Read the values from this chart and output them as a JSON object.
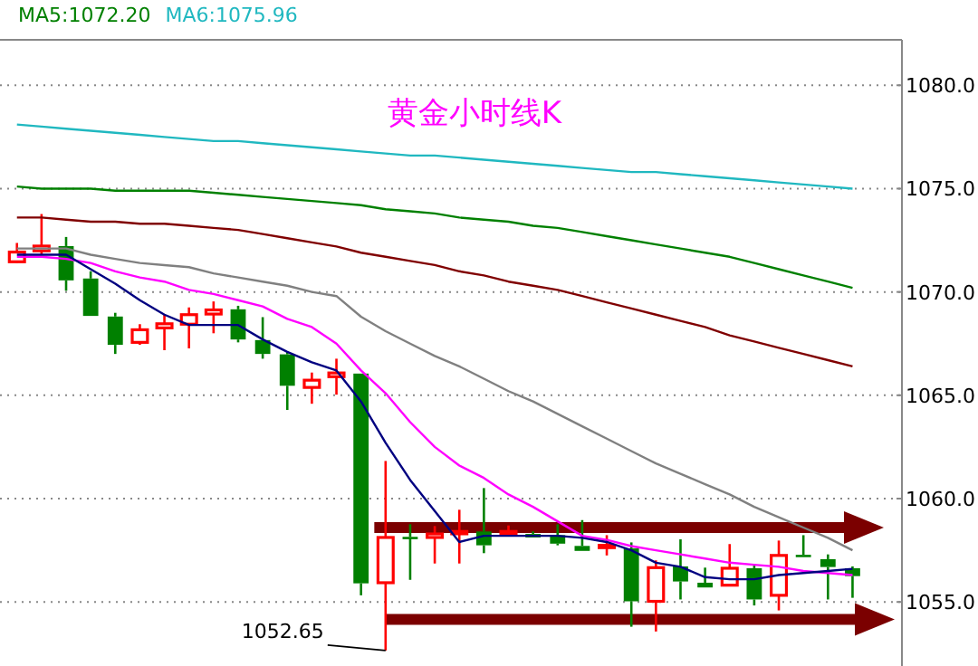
{
  "chart_data": {
    "type": "candlestick",
    "title": "黄金小时线K",
    "categories": [
      null,
      null,
      null,
      null,
      null,
      null,
      null,
      null,
      null,
      null,
      null,
      null,
      null,
      null,
      null,
      null,
      null,
      null,
      null,
      null,
      null,
      null,
      null,
      null,
      null,
      null,
      null,
      null,
      null,
      null,
      null,
      null,
      null,
      null,
      null
    ],
    "ohlc": [
      [
        1071.46,
        1072.37,
        1071.4,
        1071.93
      ],
      [
        1071.99,
        1073.77,
        1071.81,
        1072.22
      ],
      [
        1072.22,
        1072.66,
        1070.06,
        1070.56
      ],
      [
        1070.65,
        1071.0,
        1068.84,
        1068.84
      ],
      [
        1068.81,
        1068.99,
        1067.0,
        1067.44
      ],
      [
        1067.56,
        1068.44,
        1067.44,
        1068.17
      ],
      [
        1068.26,
        1068.9,
        1067.18,
        1068.46
      ],
      [
        1068.44,
        1069.25,
        1067.27,
        1068.9
      ],
      [
        1068.93,
        1069.54,
        1068.0,
        1069.13
      ],
      [
        1069.16,
        1069.33,
        1067.56,
        1067.7
      ],
      [
        1067.67,
        1068.78,
        1066.77,
        1067.0
      ],
      [
        1066.98,
        1067.12,
        1064.29,
        1065.46
      ],
      [
        1065.38,
        1066.1,
        1064.59,
        1065.73
      ],
      [
        1065.9,
        1066.77,
        1065.03,
        1066.08
      ],
      [
        1066.05,
        1066.05,
        1055.32,
        1055.9
      ],
      [
        1055.93,
        1061.82,
        1052.65,
        1058.12
      ],
      [
        1058.15,
        1058.76,
        1056.07,
        1058.1
      ],
      [
        1058.12,
        1058.67,
        1056.86,
        1058.29
      ],
      [
        1058.38,
        1059.46,
        1056.86,
        1058.41
      ],
      [
        1058.41,
        1060.51,
        1057.36,
        1057.74
      ],
      [
        1058.29,
        1058.7,
        1058.23,
        1058.41
      ],
      [
        1058.29,
        1058.41,
        1058.12,
        1058.12
      ],
      [
        1058.23,
        1058.76,
        1057.74,
        1057.82
      ],
      [
        1057.71,
        1058.96,
        1057.47,
        1057.47
      ],
      [
        1057.65,
        1058.23,
        1057.25,
        1057.74
      ],
      [
        1057.59,
        1057.88,
        1053.8,
        1055.03
      ],
      [
        1055.03,
        1057.01,
        1053.57,
        1056.66
      ],
      [
        1056.72,
        1058.03,
        1055.12,
        1055.99
      ],
      [
        1055.93,
        1056.66,
        1055.7,
        1055.7
      ],
      [
        1055.81,
        1057.8,
        1055.78,
        1056.63
      ],
      [
        1056.63,
        1056.78,
        1054.83,
        1055.12
      ],
      [
        1055.32,
        1057.97,
        1054.59,
        1057.25
      ],
      [
        1057.28,
        1058.23,
        1057.22,
        1057.22
      ],
      [
        1057.07,
        1057.3,
        1055.12,
        1056.69
      ],
      [
        1056.63,
        1056.72,
        1055.2,
        1056.25
      ]
    ],
    "series": [
      {
        "type": "line",
        "name": "MA6:1075.96",
        "color": "#20b8c0",
        "values": [
          1078.1,
          1078.0,
          1077.9,
          1077.8,
          1077.7,
          1077.6,
          1077.5,
          1077.4,
          1077.3,
          1077.3,
          1077.2,
          1077.1,
          1077.0,
          1076.9,
          1076.8,
          1076.7,
          1076.6,
          1076.6,
          1076.5,
          1076.4,
          1076.3,
          1076.2,
          1076.1,
          1076.0,
          1075.9,
          1075.8,
          1075.8,
          1075.7,
          1075.6,
          1075.5,
          1075.4,
          1075.3,
          1075.2,
          1075.1,
          1075.0
        ]
      },
      {
        "type": "line",
        "name": "MA5:1072.20",
        "color": "#008000",
        "values": [
          1075.1,
          1075.0,
          1075.0,
          1075.0,
          1074.9,
          1074.9,
          1074.9,
          1074.9,
          1074.8,
          1074.7,
          1074.6,
          1074.5,
          1074.4,
          1074.3,
          1074.2,
          1074.0,
          1073.9,
          1073.8,
          1073.6,
          1073.5,
          1073.4,
          1073.2,
          1073.1,
          1072.9,
          1072.7,
          1072.5,
          1072.3,
          1072.1,
          1071.9,
          1071.7,
          1071.4,
          1071.1,
          1070.8,
          1070.5,
          1070.2
        ]
      },
      {
        "type": "line",
        "color": "#800000",
        "values": [
          1073.6,
          1073.6,
          1073.5,
          1073.4,
          1073.4,
          1073.3,
          1073.3,
          1073.2,
          1073.1,
          1073.0,
          1072.8,
          1072.6,
          1072.4,
          1072.2,
          1071.9,
          1071.7,
          1071.5,
          1071.3,
          1071.0,
          1070.8,
          1070.5,
          1070.3,
          1070.1,
          1069.8,
          1069.5,
          1069.2,
          1068.9,
          1068.6,
          1068.3,
          1067.9,
          1067.6,
          1067.3,
          1067.0,
          1066.7,
          1066.4
        ]
      },
      {
        "type": "line",
        "color": "#808080",
        "values": [
          1072.1,
          1072.1,
          1072.1,
          1071.8,
          1071.6,
          1071.4,
          1071.3,
          1071.2,
          1070.9,
          1070.7,
          1070.5,
          1070.3,
          1070.0,
          1069.8,
          1068.8,
          1068.1,
          1067.5,
          1066.9,
          1066.4,
          1065.8,
          1065.2,
          1064.7,
          1064.1,
          1063.5,
          1062.9,
          1062.3,
          1061.7,
          1061.2,
          1060.7,
          1060.2,
          1059.6,
          1059.1,
          1058.6,
          1058.1,
          1057.5
        ]
      },
      {
        "type": "line",
        "color": "#ff00ff",
        "values": [
          1071.7,
          1071.7,
          1071.6,
          1071.4,
          1071.0,
          1070.7,
          1070.5,
          1070.1,
          1069.9,
          1069.6,
          1069.3,
          1068.7,
          1068.3,
          1067.5,
          1066.2,
          1065.1,
          1063.7,
          1062.5,
          1061.6,
          1061.0,
          1060.2,
          1059.6,
          1058.9,
          1058.2,
          1058.0,
          1057.7,
          1057.5,
          1057.3,
          1057.1,
          1056.9,
          1056.8,
          1056.7,
          1056.5,
          1056.4,
          1056.3
        ]
      },
      {
        "type": "line",
        "color": "#000080",
        "values": [
          1071.8,
          1071.8,
          1071.8,
          1071.1,
          1070.4,
          1069.6,
          1068.9,
          1068.4,
          1068.4,
          1068.4,
          1067.7,
          1067.1,
          1066.6,
          1066.2,
          1064.7,
          1062.7,
          1060.9,
          1059.4,
          1057.9,
          1058.2,
          1058.2,
          1058.2,
          1058.2,
          1058.1,
          1057.9,
          1057.5,
          1056.9,
          1056.7,
          1056.2,
          1056.1,
          1056.1,
          1056.3,
          1056.4,
          1056.5,
          1056.6
        ]
      }
    ],
    "ylim": [
      1051.9,
      1082.2
    ],
    "yticks": [
      {
        "value": 1080,
        "label": "1080.0"
      },
      {
        "value": 1075,
        "label": "1075.0"
      },
      {
        "value": 1070,
        "label": "1070.0"
      },
      {
        "value": 1065,
        "label": "1065.0"
      },
      {
        "value": 1060,
        "label": "1060.0"
      },
      {
        "value": 1055,
        "label": "1055.0"
      }
    ],
    "grid": "y",
    "legend": "top left",
    "ref_lines": [
      {
        "axis": "y",
        "value": 1058.6,
        "color": "#7b0000"
      },
      {
        "axis": "y",
        "value": 1054.15,
        "color": "#7b0000"
      }
    ],
    "annotations": [
      "1052.65"
    ]
  }
}
